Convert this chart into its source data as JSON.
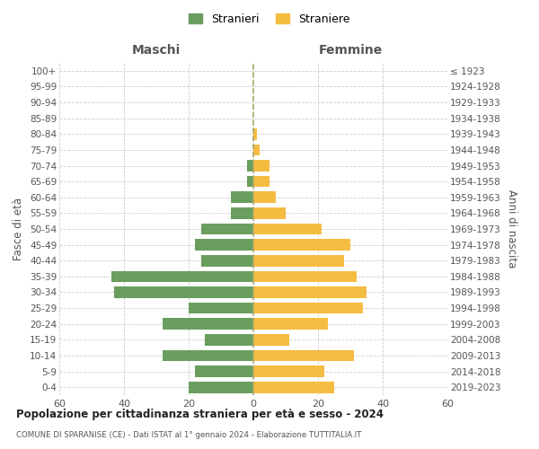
{
  "age_groups": [
    "0-4",
    "5-9",
    "10-14",
    "15-19",
    "20-24",
    "25-29",
    "30-34",
    "35-39",
    "40-44",
    "45-49",
    "50-54",
    "55-59",
    "60-64",
    "65-69",
    "70-74",
    "75-79",
    "80-84",
    "85-89",
    "90-94",
    "95-99",
    "100+"
  ],
  "birth_years": [
    "2019-2023",
    "2014-2018",
    "2009-2013",
    "2004-2008",
    "1999-2003",
    "1994-1998",
    "1989-1993",
    "1984-1988",
    "1979-1983",
    "1974-1978",
    "1969-1973",
    "1964-1968",
    "1959-1963",
    "1954-1958",
    "1949-1953",
    "1944-1948",
    "1939-1943",
    "1934-1938",
    "1929-1933",
    "1924-1928",
    "≤ 1923"
  ],
  "males": [
    20,
    18,
    28,
    15,
    28,
    20,
    43,
    44,
    16,
    18,
    16,
    7,
    7,
    2,
    2,
    0,
    0,
    0,
    0,
    0,
    0
  ],
  "females": [
    25,
    22,
    31,
    11,
    23,
    34,
    35,
    32,
    28,
    30,
    21,
    10,
    7,
    5,
    5,
    2,
    1,
    0,
    0,
    0,
    0
  ],
  "male_color": "#6a9e5f",
  "female_color": "#f5bc42",
  "bar_height": 0.72,
  "xlim": 60,
  "title": "Popolazione per cittadinanza straniera per età e sesso - 2024",
  "subtitle": "COMUNE DI SPARANISE (CE) - Dati ISTAT al 1° gennaio 2024 - Elaborazione TUTTITALIA.IT",
  "legend_male": "Stranieri",
  "legend_female": "Straniere",
  "xlabel_left": "Maschi",
  "xlabel_right": "Femmine",
  "ylabel_left": "Fasce di età",
  "ylabel_right": "Anni di nascita",
  "background_color": "#ffffff",
  "grid_color": "#cccccc"
}
